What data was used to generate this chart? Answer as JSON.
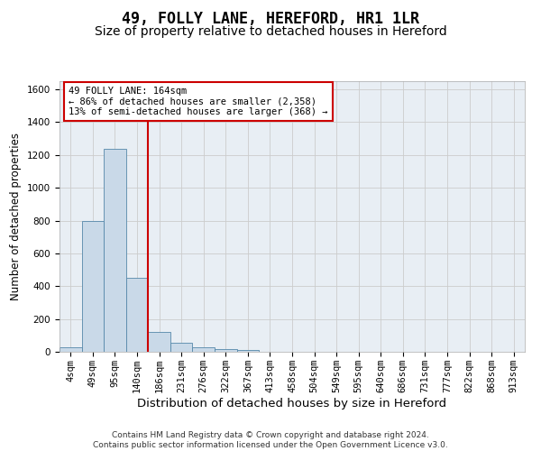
{
  "title": "49, FOLLY LANE, HEREFORD, HR1 1LR",
  "subtitle": "Size of property relative to detached houses in Hereford",
  "xlabel": "Distribution of detached houses by size in Hereford",
  "ylabel": "Number of detached properties",
  "categories": [
    "4sqm",
    "49sqm",
    "95sqm",
    "140sqm",
    "186sqm",
    "231sqm",
    "276sqm",
    "322sqm",
    "367sqm",
    "413sqm",
    "458sqm",
    "504sqm",
    "549sqm",
    "595sqm",
    "640sqm",
    "686sqm",
    "731sqm",
    "777sqm",
    "822sqm",
    "868sqm",
    "913sqm"
  ],
  "values": [
    30,
    800,
    1240,
    450,
    120,
    55,
    25,
    15,
    10,
    0,
    0,
    0,
    0,
    0,
    0,
    0,
    0,
    0,
    0,
    0,
    0
  ],
  "bar_color": "#c9d9e8",
  "bar_edge_color": "#5588aa",
  "vline_color": "#cc0000",
  "annotation_text": "49 FOLLY LANE: 164sqm\n← 86% of detached houses are smaller (2,358)\n13% of semi-detached houses are larger (368) →",
  "annotation_box_color": "#ffffff",
  "annotation_box_edge_color": "#cc0000",
  "ylim": [
    0,
    1650
  ],
  "yticks": [
    0,
    200,
    400,
    600,
    800,
    1000,
    1200,
    1400,
    1600
  ],
  "grid_color": "#cccccc",
  "background_color": "#e8eef4",
  "footer_text": "Contains HM Land Registry data © Crown copyright and database right 2024.\nContains public sector information licensed under the Open Government Licence v3.0.",
  "title_fontsize": 12,
  "subtitle_fontsize": 10,
  "xlabel_fontsize": 9.5,
  "ylabel_fontsize": 8.5,
  "tick_fontsize": 7.5,
  "footer_fontsize": 6.5
}
